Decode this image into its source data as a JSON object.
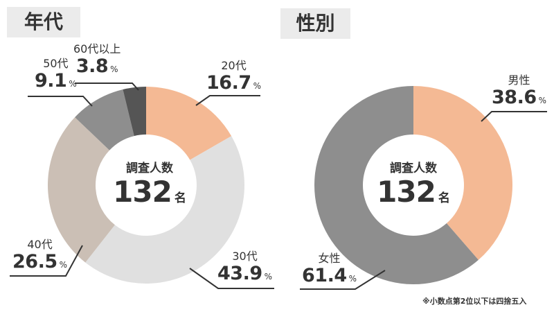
{
  "titles": {
    "age": "年代",
    "gender": "性別"
  },
  "center": {
    "caption": "調査人数",
    "count": "132",
    "unit": "名"
  },
  "percent_sign": "%",
  "age_labels": {
    "s20": {
      "category": "20代",
      "value": "16.7"
    },
    "s30": {
      "category": "30代",
      "value": "43.9"
    },
    "s40": {
      "category": "40代",
      "value": "26.5"
    },
    "s50": {
      "category": "50代",
      "value": "9.1"
    },
    "s60": {
      "category": "60代以上",
      "value": "3.8"
    }
  },
  "gender_labels": {
    "male": {
      "category": "男性",
      "value": "38.6"
    },
    "female": {
      "category": "女性",
      "value": "61.4"
    }
  },
  "footnote": "※小数点第2位以下は四捨五入",
  "colors": {
    "age_20": "#f4b994",
    "age_30": "#e0e0e0",
    "age_40": "#cbbfb5",
    "age_50": "#8e8e8e",
    "age_60": "#555555",
    "male": "#f4b994",
    "female": "#8e8e8e",
    "title_bg": "#ebebeb",
    "text": "#333333"
  },
  "chart_data": [
    {
      "type": "pie",
      "title": "年代",
      "center_label": "調査人数 132名",
      "categories": [
        "20代",
        "30代",
        "40代",
        "50代",
        "60代以上"
      ],
      "values": [
        16.7,
        43.9,
        26.5,
        9.1,
        3.8
      ],
      "unit": "%",
      "donut": true
    },
    {
      "type": "pie",
      "title": "性別",
      "center_label": "調査人数 132名",
      "categories": [
        "男性",
        "女性"
      ],
      "values": [
        38.6,
        61.4
      ],
      "unit": "%",
      "donut": true
    }
  ]
}
